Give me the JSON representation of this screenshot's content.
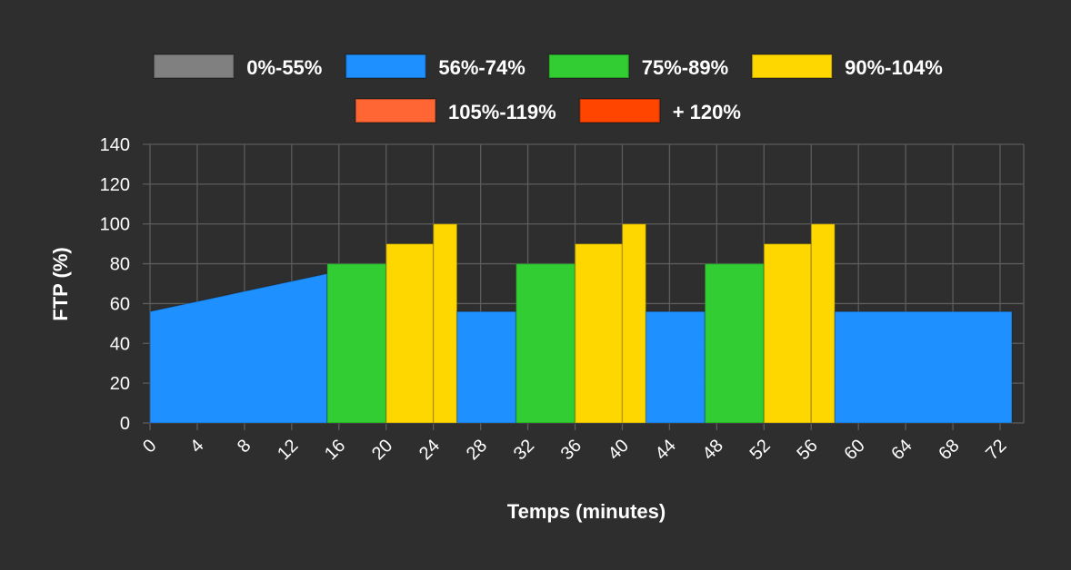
{
  "chart_data": {
    "type": "area",
    "title": "",
    "xlabel": "Temps (minutes)",
    "ylabel": "FTP (%)",
    "xlim": [
      0,
      74
    ],
    "ylim": [
      0,
      140
    ],
    "x_ticks": [
      0,
      4,
      8,
      12,
      16,
      20,
      24,
      28,
      32,
      36,
      40,
      44,
      48,
      52,
      56,
      60,
      64,
      68,
      72
    ],
    "y_ticks": [
      0,
      20,
      40,
      60,
      80,
      100,
      120,
      140
    ],
    "grid": true,
    "legend_position": "top",
    "legend": [
      {
        "label": "0%-55%",
        "color": "#808080"
      },
      {
        "label": "56%-74%",
        "color": "#1e90ff"
      },
      {
        "label": "75%-89%",
        "color": "#32cd32"
      },
      {
        "label": "90%-104%",
        "color": "#ffd700"
      },
      {
        "label": "105%-119%",
        "color": "#ff6633"
      },
      {
        "label": "+ 120%",
        "color": "#ff4500"
      }
    ],
    "segments": [
      {
        "zone": "56%-74%",
        "x_start": 0,
        "x_end": 15,
        "y_start": 56,
        "y_end": 75
      },
      {
        "zone": "75%-89%",
        "x_start": 15,
        "x_end": 20,
        "y_start": 80,
        "y_end": 80
      },
      {
        "zone": "90%-104%",
        "x_start": 20,
        "x_end": 24,
        "y_start": 90,
        "y_end": 90
      },
      {
        "zone": "90%-104%",
        "x_start": 24,
        "x_end": 26,
        "y_start": 100,
        "y_end": 100
      },
      {
        "zone": "56%-74%",
        "x_start": 26,
        "x_end": 31,
        "y_start": 56,
        "y_end": 56
      },
      {
        "zone": "75%-89%",
        "x_start": 31,
        "x_end": 36,
        "y_start": 80,
        "y_end": 80
      },
      {
        "zone": "90%-104%",
        "x_start": 36,
        "x_end": 40,
        "y_start": 90,
        "y_end": 90
      },
      {
        "zone": "90%-104%",
        "x_start": 40,
        "x_end": 42,
        "y_start": 100,
        "y_end": 100
      },
      {
        "zone": "56%-74%",
        "x_start": 42,
        "x_end": 47,
        "y_start": 56,
        "y_end": 56
      },
      {
        "zone": "75%-89%",
        "x_start": 47,
        "x_end": 52,
        "y_start": 80,
        "y_end": 80
      },
      {
        "zone": "90%-104%",
        "x_start": 52,
        "x_end": 56,
        "y_start": 90,
        "y_end": 90
      },
      {
        "zone": "90%-104%",
        "x_start": 56,
        "x_end": 58,
        "y_start": 100,
        "y_end": 100
      },
      {
        "zone": "56%-74%",
        "x_start": 58,
        "x_end": 73,
        "y_start": 56,
        "y_end": 56
      }
    ]
  }
}
